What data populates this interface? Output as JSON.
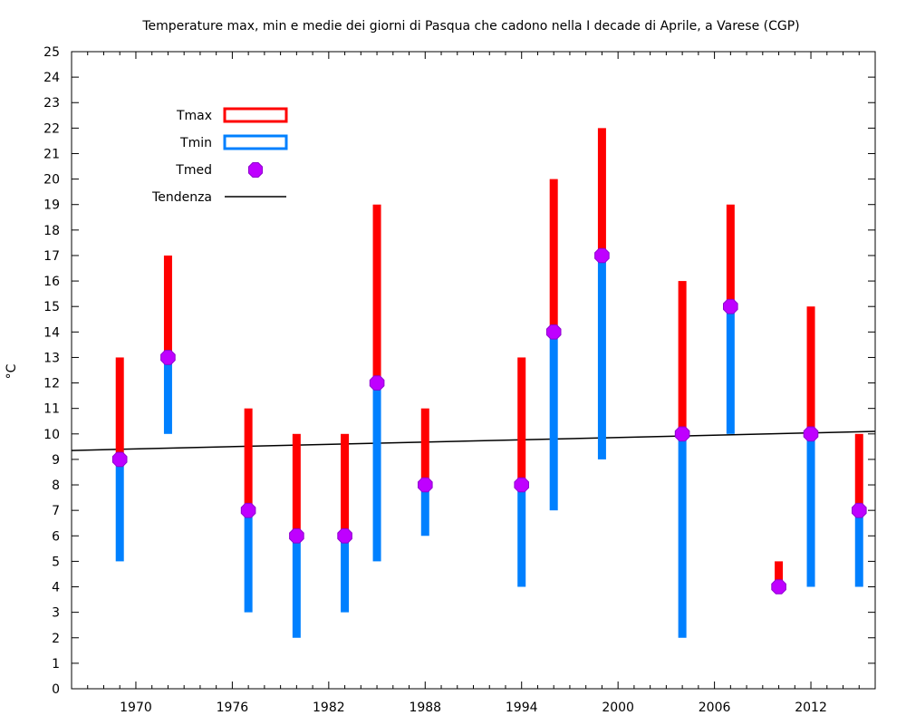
{
  "chart_data": {
    "type": "range-bar",
    "title": "Temperature max, min e medie dei giorni di Pasqua che cadono nella I decade di Aprile, a Varese (CGP)",
    "ylabel": "°C",
    "xlabel": "",
    "xlim": [
      1966.0,
      2016.0
    ],
    "ylim": [
      0,
      25
    ],
    "x_ticks": [
      1970,
      1976,
      1982,
      1988,
      1994,
      2000,
      2006,
      2012
    ],
    "y_ticks": [
      0,
      1,
      2,
      3,
      4,
      5,
      6,
      7,
      8,
      9,
      10,
      11,
      12,
      13,
      14,
      15,
      16,
      17,
      18,
      19,
      20,
      21,
      22,
      23,
      24,
      25
    ],
    "grid": false,
    "legend_position": "top-left",
    "series": [
      {
        "name": "Tmax",
        "color": "#ff0000",
        "values": [
          13,
          17,
          11,
          10,
          10,
          19,
          11,
          13,
          20,
          22,
          16,
          19,
          5,
          15,
          10
        ]
      },
      {
        "name": "Tmin",
        "color": "#0080ff",
        "values": [
          5,
          10,
          3,
          2,
          3,
          5,
          6,
          4,
          7,
          9,
          2,
          10,
          4,
          4,
          4
        ]
      },
      {
        "name": "Tmed",
        "color": "#bf00ff",
        "values": [
          9,
          13,
          7,
          6,
          6,
          12,
          8,
          8,
          14,
          17,
          10,
          15,
          4,
          10,
          7
        ]
      },
      {
        "name": "Tendenza",
        "color": "#000000",
        "line": [
          [
            1966.0,
            9.35
          ],
          [
            2016.0,
            10.1
          ]
        ]
      }
    ],
    "x": [
      1969,
      1972,
      1977,
      1980,
      1983,
      1985,
      1988,
      1994,
      1996,
      1999,
      2004,
      2007,
      2010,
      2012,
      2015
    ]
  }
}
